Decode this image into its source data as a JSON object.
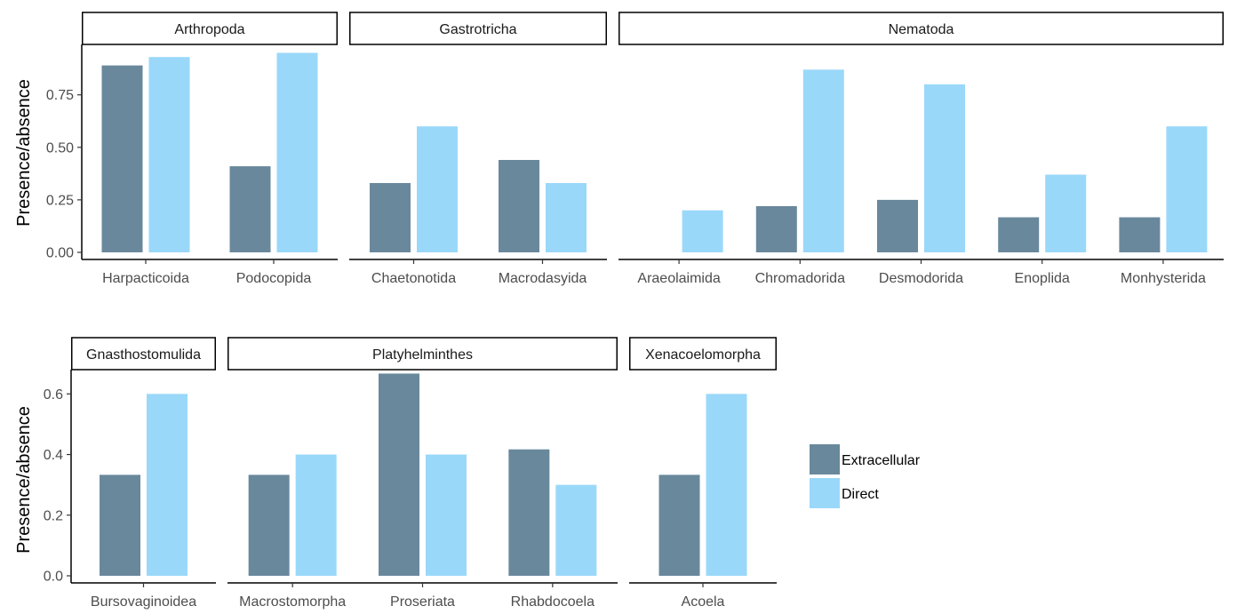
{
  "chart_data": {
    "type": "bar",
    "ylabel": "Presence/absence",
    "series_names": [
      "Extracellular",
      "Direct"
    ],
    "colors": {
      "Extracellular": "#69889c",
      "Direct": "#9ad8fa"
    },
    "legend": {
      "placement": "right",
      "entries": [
        "Extracellular",
        "Direct"
      ]
    },
    "rows": [
      {
        "ylim": [
          0,
          0.99
        ],
        "yticks": [
          0.0,
          0.25,
          0.5,
          0.75
        ],
        "ytick_labels": [
          "0.00",
          "0.25",
          "0.50",
          "0.75"
        ],
        "facets": [
          {
            "title": "Arthropoda",
            "categories": [
              "Harpacticoida",
              "Podocopida"
            ],
            "series": [
              {
                "name": "Extracellular",
                "values": [
                  0.89,
                  0.41
                ]
              },
              {
                "name": "Direct",
                "values": [
                  0.93,
                  0.95
                ]
              }
            ]
          },
          {
            "title": "Gastrotricha",
            "categories": [
              "Chaetonotida",
              "Macrodasyida"
            ],
            "series": [
              {
                "name": "Extracellular",
                "values": [
                  0.33,
                  0.44
                ]
              },
              {
                "name": "Direct",
                "values": [
                  0.6,
                  0.33
                ]
              }
            ]
          },
          {
            "title": "Nematoda",
            "categories": [
              "Araeolaimida",
              "Chromadorida",
              "Desmodorida",
              "Enoplida",
              "Monhysterida"
            ],
            "series": [
              {
                "name": "Extracellular",
                "values": [
                  0.0,
                  0.22,
                  0.25,
                  0.167,
                  0.167
                ]
              },
              {
                "name": "Direct",
                "values": [
                  0.2,
                  0.87,
                  0.8,
                  0.37,
                  0.6
                ]
              }
            ]
          }
        ]
      },
      {
        "ylim": [
          0,
          0.68
        ],
        "yticks": [
          0.0,
          0.2,
          0.4,
          0.6
        ],
        "ytick_labels": [
          "0.0",
          "0.2",
          "0.4",
          "0.6"
        ],
        "facets": [
          {
            "title": "Gnasthostomulida",
            "categories": [
              "Bursovaginoidea"
            ],
            "series": [
              {
                "name": "Extracellular",
                "values": [
                  0.333
                ]
              },
              {
                "name": "Direct",
                "values": [
                  0.6
                ]
              }
            ]
          },
          {
            "title": "Platyhelminthes",
            "categories": [
              "Macrostomorpha",
              "Proseriata",
              "Rhabdocoela"
            ],
            "series": [
              {
                "name": "Extracellular",
                "values": [
                  0.333,
                  0.667,
                  0.417
                ]
              },
              {
                "name": "Direct",
                "values": [
                  0.4,
                  0.4,
                  0.3
                ]
              }
            ]
          },
          {
            "title": "Xenacoelomorpha",
            "categories": [
              "Acoela"
            ],
            "series": [
              {
                "name": "Extracellular",
                "values": [
                  0.333
                ]
              },
              {
                "name": "Direct",
                "values": [
                  0.6
                ]
              }
            ]
          }
        ]
      }
    ]
  }
}
